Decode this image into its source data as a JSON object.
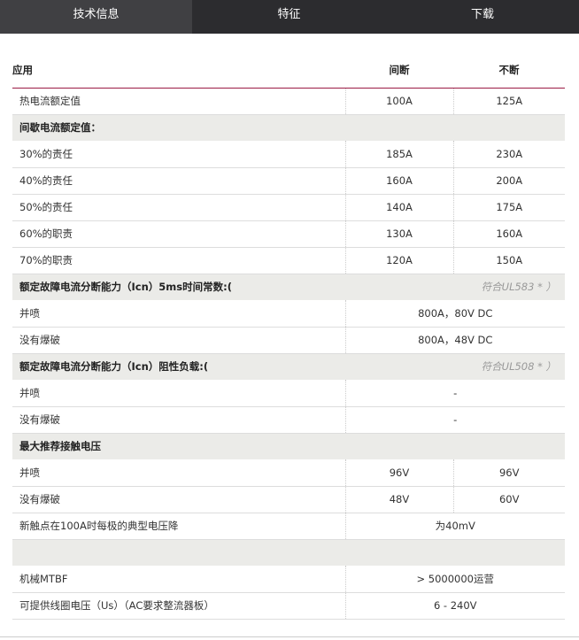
{
  "tabs": [
    {
      "label": "技术信息",
      "active": true
    },
    {
      "label": "特征"
    },
    {
      "label": "下载"
    }
  ],
  "table": {
    "headers": [
      "应用",
      "间断",
      "不断"
    ],
    "rows": [
      {
        "type": "data",
        "label": "热电流额定值",
        "values": [
          "100A",
          "125A"
        ]
      },
      {
        "type": "section",
        "label": "间歇电流额定值："
      },
      {
        "type": "data",
        "label": "30%的责任",
        "values": [
          "185A",
          "230A"
        ]
      },
      {
        "type": "data",
        "label": "40%的责任",
        "values": [
          "160A",
          "200A"
        ]
      },
      {
        "type": "data",
        "label": "50%的责任",
        "values": [
          "140A",
          "175A"
        ]
      },
      {
        "type": "data",
        "label": "60%的职责",
        "values": [
          "130A",
          "160A"
        ]
      },
      {
        "type": "data",
        "label": "70%的职责",
        "values": [
          "120A",
          "150A"
        ]
      },
      {
        "type": "section",
        "label": "额定故障电流分断能力（Icn）5ms时间常数:(",
        "note": "符合UL583 * ）"
      },
      {
        "type": "span",
        "label": "并喷",
        "value": "800A，80V DC"
      },
      {
        "type": "span",
        "label": "没有爆破",
        "value": "800A，48V DC"
      },
      {
        "type": "section",
        "label": "额定故障电流分断能力（Icn）阻性负载:(",
        "note": "符合UL508 * ）"
      },
      {
        "type": "span",
        "label": "并喷",
        "value": "-"
      },
      {
        "type": "span",
        "label": "没有爆破",
        "value": "-"
      },
      {
        "type": "section",
        "label": "最大推荐接触电压"
      },
      {
        "type": "data",
        "label": "并喷",
        "values": [
          "96V",
          "96V"
        ]
      },
      {
        "type": "data",
        "label": "没有爆破",
        "values": [
          "48V",
          "60V"
        ]
      },
      {
        "type": "span",
        "label": "新触点在100A时每极的典型电压降",
        "value": "为40mV"
      },
      {
        "type": "blank"
      },
      {
        "type": "span",
        "label": "机械MTBF",
        "value": "> 5000000运营"
      },
      {
        "type": "span",
        "label": "可提供线圈电压（Us）（AC要求整流器板）",
        "value": "6 - 240V"
      }
    ]
  }
}
